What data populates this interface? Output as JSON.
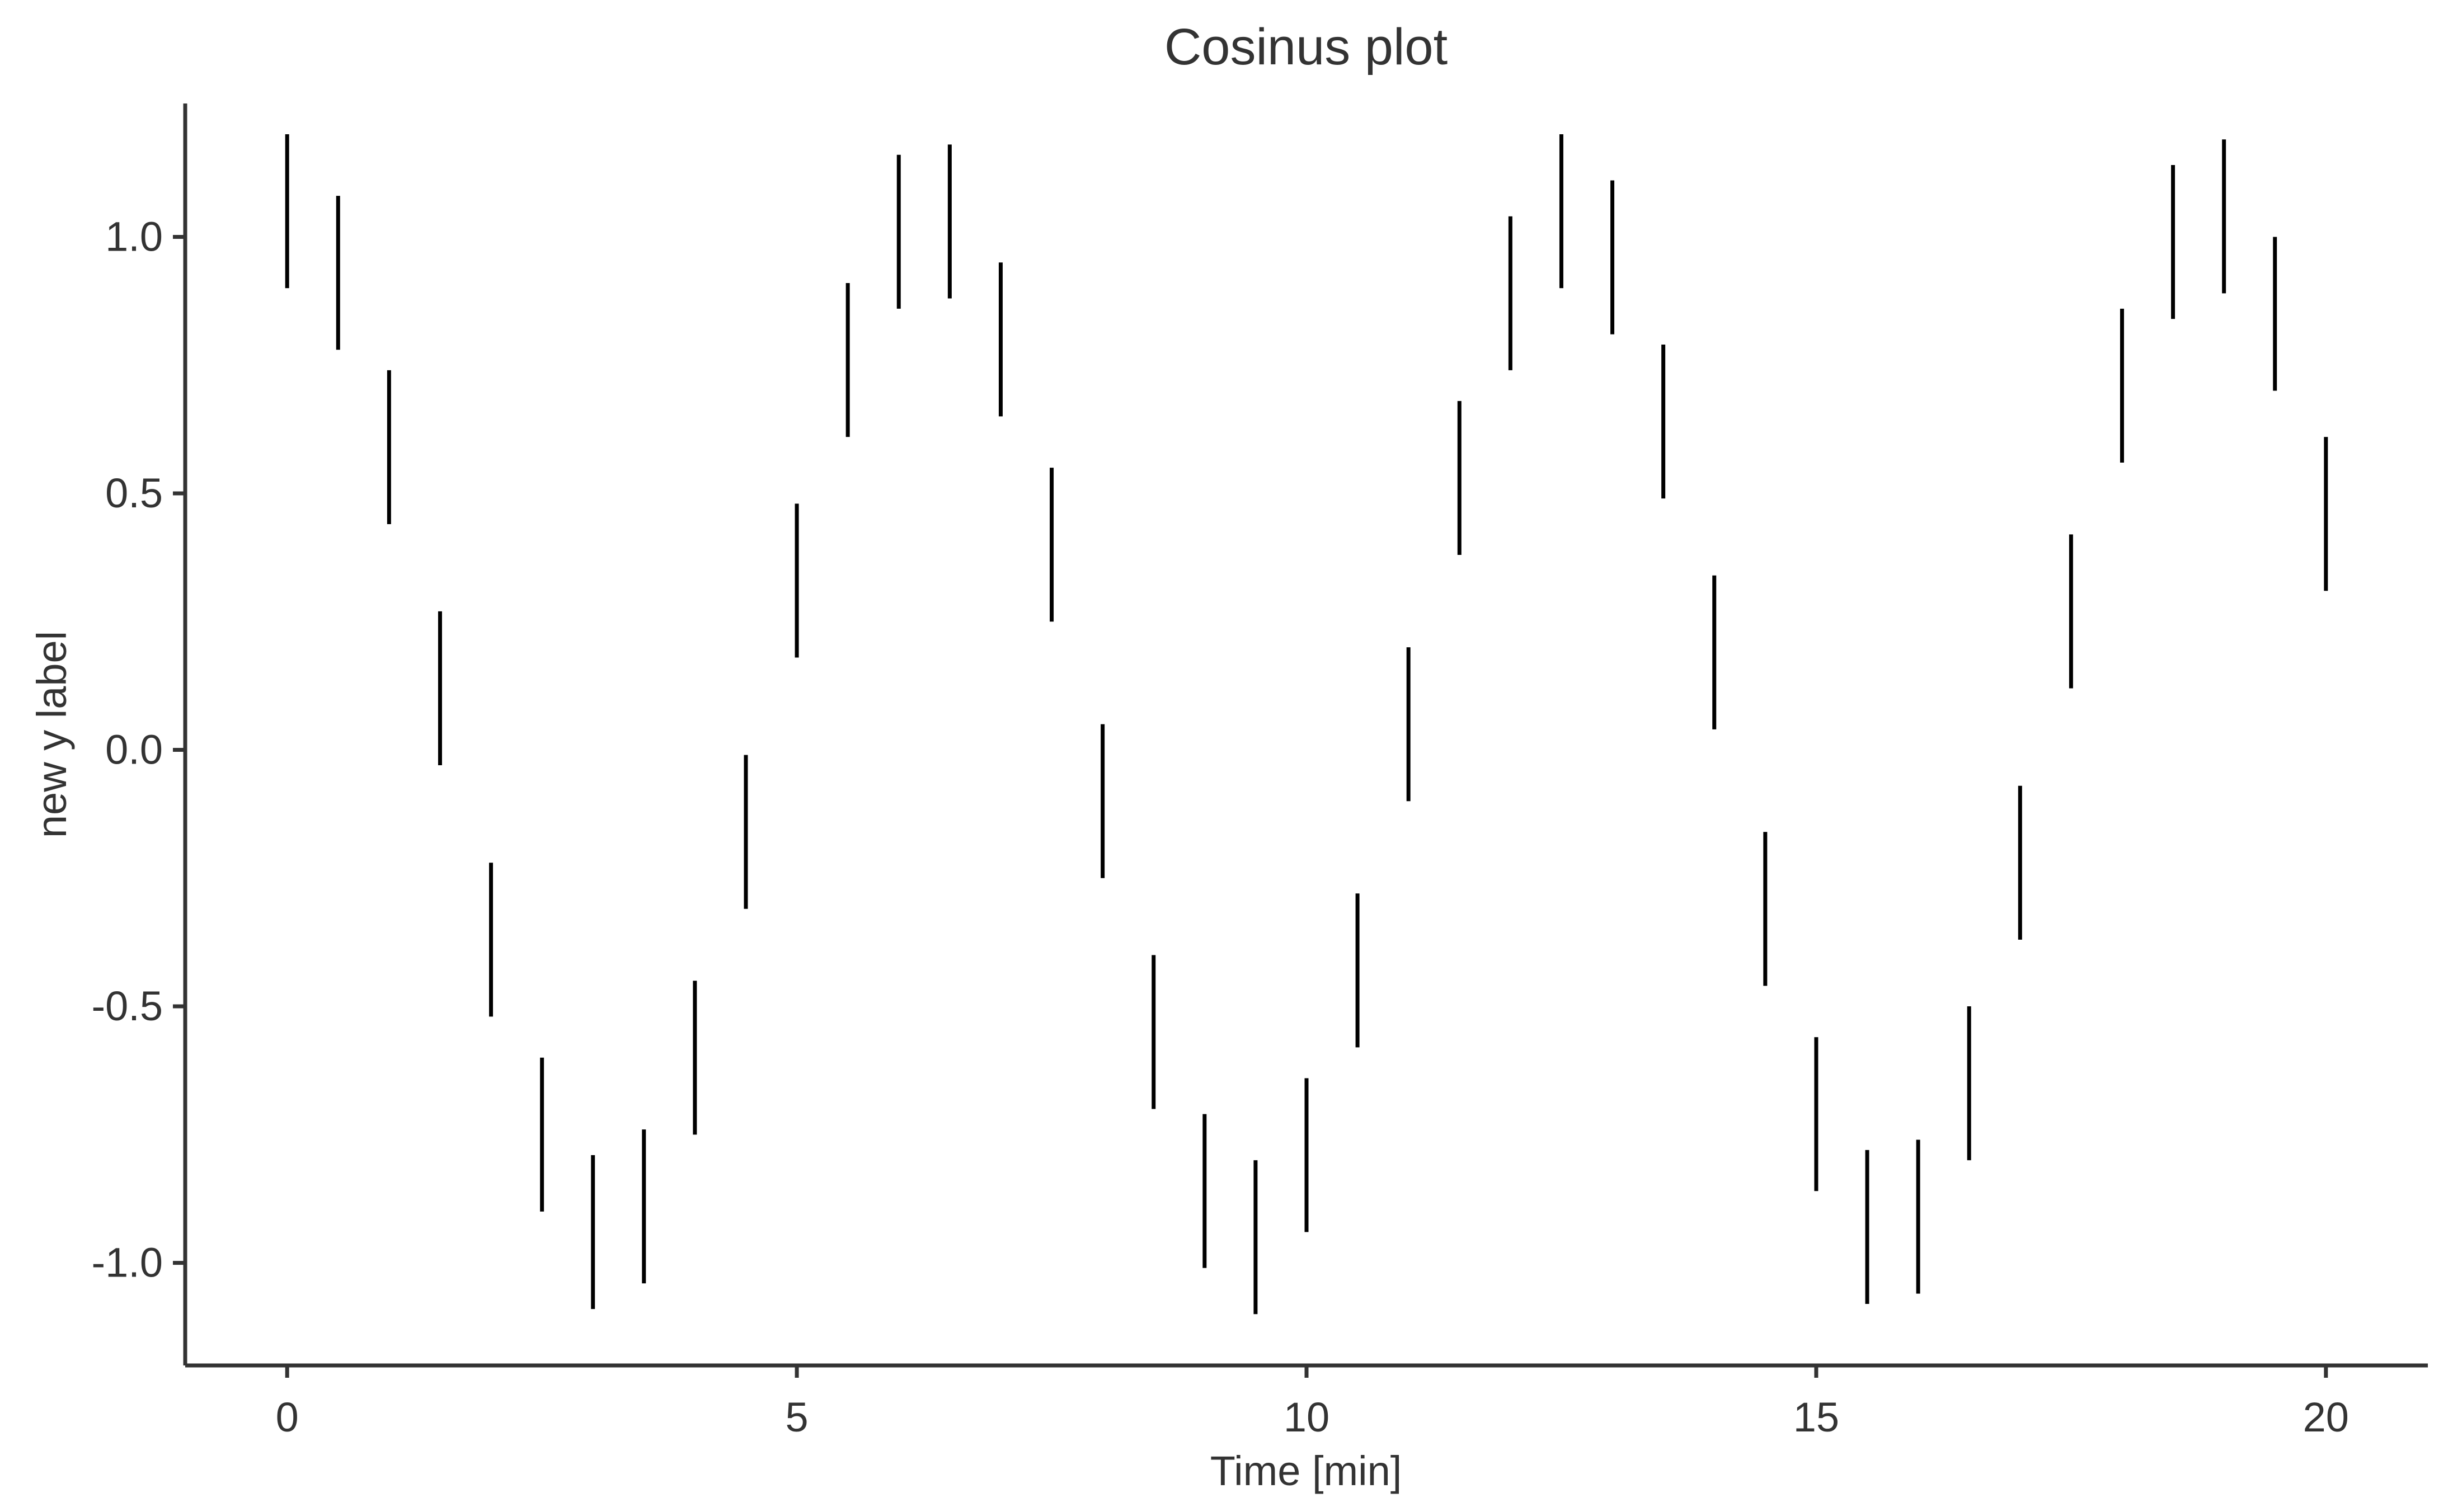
{
  "chart_data": {
    "type": "errorbar",
    "title": "Cosinus plot",
    "xlabel": "Time [min]",
    "ylabel": "new y label",
    "xlim": [
      -1,
      21
    ],
    "ylim": [
      -1.2,
      1.26
    ],
    "x_ticks": [
      0,
      5,
      10,
      15,
      20
    ],
    "x_tick_labels": [
      "0",
      "5",
      "10",
      "15",
      "20"
    ],
    "y_ticks": [
      1.0,
      0.5,
      0.0,
      -0.5,
      -1.0
    ],
    "y_tick_labels": [
      "1.0",
      "0.5",
      "0.0",
      "-0.5",
      "-1.0"
    ],
    "grid": false,
    "colors": {
      "bars": "#000000",
      "axis": "#333333",
      "text": "#333333"
    },
    "points": [
      {
        "x": 0.0,
        "ymin": 0.9,
        "ymax": 1.2
      },
      {
        "x": 0.5,
        "ymin": 0.78,
        "ymax": 1.08
      },
      {
        "x": 1.0,
        "ymin": 0.44,
        "ymax": 0.74
      },
      {
        "x": 1.5,
        "ymin": -0.03,
        "ymax": 0.27
      },
      {
        "x": 2.0,
        "ymin": -0.52,
        "ymax": -0.22
      },
      {
        "x": 2.5,
        "ymin": -0.9,
        "ymax": -0.6
      },
      {
        "x": 3.0,
        "ymin": -1.09,
        "ymax": -0.79
      },
      {
        "x": 3.5,
        "ymin": -1.04,
        "ymax": -0.74
      },
      {
        "x": 4.0,
        "ymin": -0.75,
        "ymax": -0.45
      },
      {
        "x": 4.5,
        "ymin": -0.31,
        "ymax": -0.01
      },
      {
        "x": 5.0,
        "ymin": 0.18,
        "ymax": 0.48
      },
      {
        "x": 5.5,
        "ymin": 0.61,
        "ymax": 0.91
      },
      {
        "x": 6.0,
        "ymin": 0.86,
        "ymax": 1.16
      },
      {
        "x": 6.5,
        "ymin": 0.88,
        "ymax": 1.18
      },
      {
        "x": 7.0,
        "ymin": 0.65,
        "ymax": 0.95
      },
      {
        "x": 7.5,
        "ymin": 0.25,
        "ymax": 0.55
      },
      {
        "x": 8.0,
        "ymin": -0.25,
        "ymax": 0.05
      },
      {
        "x": 8.5,
        "ymin": -0.7,
        "ymax": -0.4
      },
      {
        "x": 9.0,
        "ymin": -1.01,
        "ymax": -0.71
      },
      {
        "x": 9.5,
        "ymin": -1.1,
        "ymax": -0.8
      },
      {
        "x": 10.0,
        "ymin": -0.94,
        "ymax": -0.64
      },
      {
        "x": 10.5,
        "ymin": -0.58,
        "ymax": -0.28
      },
      {
        "x": 11.0,
        "ymin": -0.1,
        "ymax": 0.2
      },
      {
        "x": 11.5,
        "ymin": 0.38,
        "ymax": 0.68
      },
      {
        "x": 12.0,
        "ymin": 0.74,
        "ymax": 1.04
      },
      {
        "x": 12.5,
        "ymin": 0.9,
        "ymax": 1.2
      },
      {
        "x": 13.0,
        "ymin": 0.81,
        "ymax": 1.11
      },
      {
        "x": 13.5,
        "ymin": 0.49,
        "ymax": 0.79
      },
      {
        "x": 14.0,
        "ymin": 0.04,
        "ymax": 0.34
      },
      {
        "x": 14.5,
        "ymin": -0.46,
        "ymax": -0.16
      },
      {
        "x": 15.0,
        "ymin": -0.86,
        "ymax": -0.56
      },
      {
        "x": 15.5,
        "ymin": -1.08,
        "ymax": -0.78
      },
      {
        "x": 16.0,
        "ymin": -1.06,
        "ymax": -0.76
      },
      {
        "x": 16.5,
        "ymin": -0.8,
        "ymax": -0.5
      },
      {
        "x": 17.0,
        "ymin": -0.37,
        "ymax": -0.07
      },
      {
        "x": 17.5,
        "ymin": 0.12,
        "ymax": 0.42
      },
      {
        "x": 18.0,
        "ymin": 0.56,
        "ymax": 0.86
      },
      {
        "x": 18.5,
        "ymin": 0.84,
        "ymax": 1.14
      },
      {
        "x": 19.0,
        "ymin": 0.89,
        "ymax": 1.19
      },
      {
        "x": 19.5,
        "ymin": 0.7,
        "ymax": 1.0
      },
      {
        "x": 20.0,
        "ymin": 0.31,
        "ymax": 0.61
      }
    ]
  }
}
